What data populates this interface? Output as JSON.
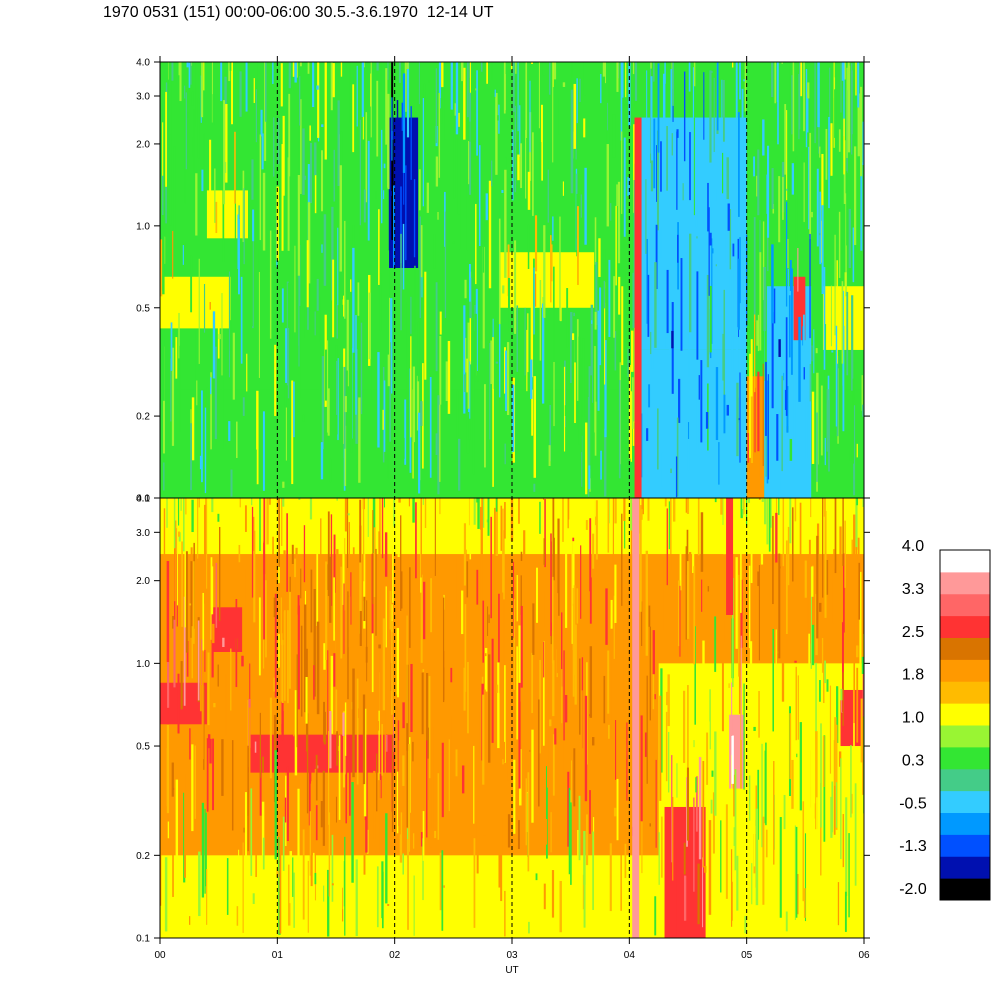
{
  "header": "1970 0531 (151) 00:00-06:00 30.5.-3.6.1970  12-14 UT",
  "chart_data": {
    "type": "heatmap",
    "title": "1970 0531 (151) 00:00-06:00 30.5.-3.6.1970  12-14 UT",
    "xlabel": "UT",
    "x_ticks": [
      "00",
      "01",
      "02",
      "03",
      "04",
      "05",
      "06"
    ],
    "x_range": [
      0,
      6
    ],
    "y_scale": "log",
    "y_range": [
      0.1,
      4.0
    ],
    "y_ticks": [
      {
        "value": 0.1,
        "label": "0.1"
      },
      {
        "value": 0.2,
        "label": "0.2"
      },
      {
        "value": 0.5,
        "label": "0.5"
      },
      {
        "value": 1.0,
        "label": "1.0"
      },
      {
        "value": 2.0,
        "label": "2.0"
      },
      {
        "value": 3.0,
        "label": "3.0"
      },
      {
        "value": 4.0,
        "label": "4.0"
      }
    ],
    "dashed_gridlines_x": [
      1,
      2,
      3,
      4,
      5
    ],
    "panels": [
      {
        "name": "top",
        "background_level": 0.3,
        "features": [
          {
            "type": "band",
            "x": [
              0,
              6
            ],
            "y": [
              0.1,
              0.25
            ],
            "level": 0.3
          },
          {
            "type": "band",
            "x": [
              0,
              0.6
            ],
            "y": [
              0.42,
              0.65
            ],
            "level": 1.0
          },
          {
            "type": "band",
            "x": [
              0.4,
              0.75
            ],
            "y": [
              0.9,
              1.35
            ],
            "level": 1.0
          },
          {
            "type": "band",
            "x": [
              2.9,
              3.7
            ],
            "y": [
              0.5,
              0.8
            ],
            "level": 1.0
          },
          {
            "type": "band",
            "x": [
              5.65,
              6
            ],
            "y": [
              0.35,
              0.6
            ],
            "level": 1.0
          },
          {
            "type": "band",
            "x": [
              1.95,
              2.2
            ],
            "y": [
              0.7,
              2.5
            ],
            "level": -1.3
          },
          {
            "type": "band",
            "x": [
              4.05,
              5.0
            ],
            "y": [
              0.1,
              0.35
            ],
            "level": -0.5
          },
          {
            "type": "band",
            "x": [
              4.1,
              5.0
            ],
            "y": [
              0.35,
              2.5
            ],
            "level": -0.5
          },
          {
            "type": "band",
            "x": [
              5.0,
              5.15
            ],
            "y": [
              0.1,
              0.28
            ],
            "level": 1.8
          },
          {
            "type": "band",
            "x": [
              5.15,
              5.55
            ],
            "y": [
              0.1,
              0.6
            ],
            "level": -0.5
          },
          {
            "type": "band",
            "x": [
              5.4,
              5.5
            ],
            "y": [
              0.38,
              0.65
            ],
            "level": 2.5
          },
          {
            "type": "streak",
            "x": 4.07,
            "y": [
              0.1,
              2.5
            ],
            "level": 2.5
          }
        ]
      },
      {
        "name": "bottom",
        "background_level": 1.8,
        "features": [
          {
            "type": "band",
            "x": [
              0,
              6
            ],
            "y": [
              2.5,
              4.0
            ],
            "level": 1.0
          },
          {
            "type": "band",
            "x": [
              0,
              0.4
            ],
            "y": [
              0.6,
              0.85
            ],
            "level": 2.5
          },
          {
            "type": "band",
            "x": [
              0.45,
              0.7
            ],
            "y": [
              1.1,
              1.6
            ],
            "level": 2.5
          },
          {
            "type": "band",
            "x": [
              0.75,
              2.0
            ],
            "y": [
              0.4,
              0.55
            ],
            "level": 2.5
          },
          {
            "type": "band",
            "x": [
              0,
              6
            ],
            "y": [
              0.1,
              0.2
            ],
            "level": 1.0
          },
          {
            "type": "band",
            "x": [
              4.25,
              6
            ],
            "y": [
              0.1,
              1.0
            ],
            "level": 1.0
          },
          {
            "type": "band",
            "x": [
              4.3,
              4.65
            ],
            "y": [
              0.1,
              0.3
            ],
            "level": 2.5
          },
          {
            "type": "band",
            "x": [
              4.85,
              4.98
            ],
            "y": [
              0.35,
              0.65
            ],
            "level": 3.3
          },
          {
            "type": "band",
            "x": [
              5.8,
              6
            ],
            "y": [
              0.5,
              0.8
            ],
            "level": 2.5
          },
          {
            "type": "streak",
            "x": 4.05,
            "y": [
              0.1,
              4.0
            ],
            "level": 3.3
          },
          {
            "type": "streak",
            "x": 4.85,
            "y": [
              1.5,
              4.0
            ],
            "level": 2.5
          }
        ]
      }
    ],
    "colorbar": {
      "labels": [
        "4.0",
        "3.3",
        "2.5",
        "1.8",
        "1.0",
        "0.3",
        "-0.5",
        "-1.3",
        "-2.0"
      ],
      "levels": [
        -2.0,
        -1.64,
        -1.29,
        -0.93,
        -0.57,
        -0.21,
        0.14,
        0.5,
        0.86,
        1.21,
        1.57,
        1.93,
        2.29,
        2.64,
        3.0,
        3.36
      ],
      "colors": [
        "#000000",
        "#0010b0",
        "#0050ff",
        "#0099ff",
        "#33ccff",
        "#44cc88",
        "#33e633",
        "#99f533",
        "#ffff00",
        "#ffbb00",
        "#ff9900",
        "#d97400",
        "#ff3333",
        "#ff6666",
        "#ff9999",
        "#ffffff"
      ]
    }
  }
}
